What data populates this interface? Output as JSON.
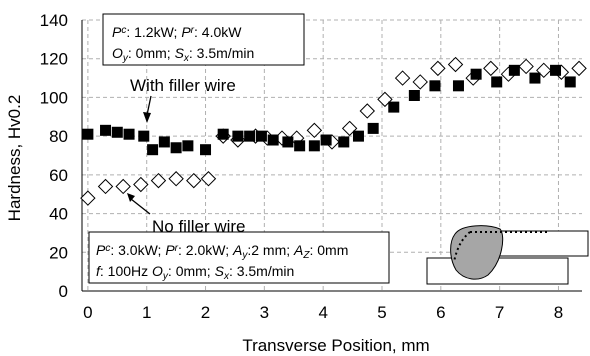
{
  "chart_data": {
    "type": "scatter",
    "xlabel": "Transverse Position, mm",
    "ylabel": "Hardness, Hv0.2",
    "xlim": [
      -0.1,
      8.4
    ],
    "ylim": [
      0,
      140
    ],
    "xticks": [
      "0",
      "1",
      "2",
      "3",
      "4",
      "5",
      "6",
      "7",
      "8"
    ],
    "yticks": [
      "0",
      "20",
      "40",
      "60",
      "80",
      "100",
      "120",
      "140"
    ],
    "grid": "dashed",
    "series": [
      {
        "name": "With filler wire",
        "marker": "filled-square",
        "x": [
          0,
          0.3,
          0.5,
          0.7,
          0.95,
          1.1,
          1.3,
          1.5,
          1.7,
          2.0,
          2.3,
          2.55,
          2.75,
          2.95,
          3.15,
          3.4,
          3.6,
          3.85,
          4.05,
          4.35,
          4.6,
          4.85,
          5.2,
          5.55,
          5.9,
          6.3,
          6.6,
          6.95,
          7.25,
          7.6,
          7.95,
          8.2
        ],
        "y": [
          81,
          83,
          82,
          81,
          80,
          73,
          77,
          74,
          75,
          73,
          81,
          80,
          80,
          80,
          78,
          77,
          75,
          75,
          78,
          77,
          80,
          84,
          95,
          101,
          106,
          106,
          112,
          108,
          114,
          110,
          114,
          108
        ]
      },
      {
        "name": "No filler wire",
        "marker": "open-diamond",
        "x": [
          0,
          0.3,
          0.6,
          0.9,
          1.2,
          1.5,
          1.8,
          2.05,
          2.3,
          2.55,
          2.85,
          3.05,
          3.3,
          3.55,
          3.85,
          4.15,
          4.45,
          4.75,
          5.05,
          5.35,
          5.65,
          5.95,
          6.25,
          6.55,
          6.85,
          7.15,
          7.45,
          7.75,
          8.05,
          8.35
        ],
        "y": [
          48,
          54,
          54,
          55,
          57,
          58,
          57,
          58,
          80,
          78,
          80,
          79,
          79,
          79,
          83,
          77,
          84,
          93,
          99,
          110,
          108,
          115,
          117,
          110,
          115,
          112,
          116,
          114,
          113,
          115
        ]
      }
    ],
    "annotations": [
      {
        "label": "With filler wire",
        "target": [
          0.95,
          80
        ]
      },
      {
        "label": "No filler wire",
        "target": [
          0.6,
          54
        ]
      }
    ],
    "params_boxes": [
      {
        "lines": [
          [
            {
              "t": "P"
            },
            {
              "t": "c",
              "sup": true
            },
            {
              "t": ": 1.2kW; "
            },
            {
              "t": "P"
            },
            {
              "t": "r",
              "sup": true
            },
            {
              "t": ": 4.0kW"
            }
          ],
          [
            {
              "t": "O"
            },
            {
              "t": "y",
              "sub": true
            },
            {
              "t": ": 0mm; "
            },
            {
              "t": "S"
            },
            {
              "t": "x",
              "sub": true
            },
            {
              "t": ": 3.5m/min"
            }
          ]
        ]
      },
      {
        "lines": [
          [
            {
              "t": "P"
            },
            {
              "t": "c",
              "sup": true
            },
            {
              "t": ": 3.0kW; "
            },
            {
              "t": "P"
            },
            {
              "t": "r",
              "sup": true
            },
            {
              "t": ": 2.0kW; "
            },
            {
              "t": "A"
            },
            {
              "t": "y",
              "sub": true
            },
            {
              "t": ":2 mm; "
            },
            {
              "t": "A"
            },
            {
              "t": "Z",
              "sub": true
            },
            {
              "t": ": 0mm"
            }
          ],
          [
            {
              "t": "f"
            },
            {
              "t": ": 100Hz "
            },
            {
              "t": "O"
            },
            {
              "t": "y",
              "sub": true
            },
            {
              "t": ": 0mm; "
            },
            {
              "t": "S"
            },
            {
              "t": "x",
              "sub": true
            },
            {
              "t": ": 3.5m/min"
            }
          ]
        ]
      }
    ],
    "colors": {
      "filled": "#000000",
      "open_stroke": "#000000",
      "grid": "#b0b0b0",
      "weld_fill": "#a6a6a6"
    }
  }
}
